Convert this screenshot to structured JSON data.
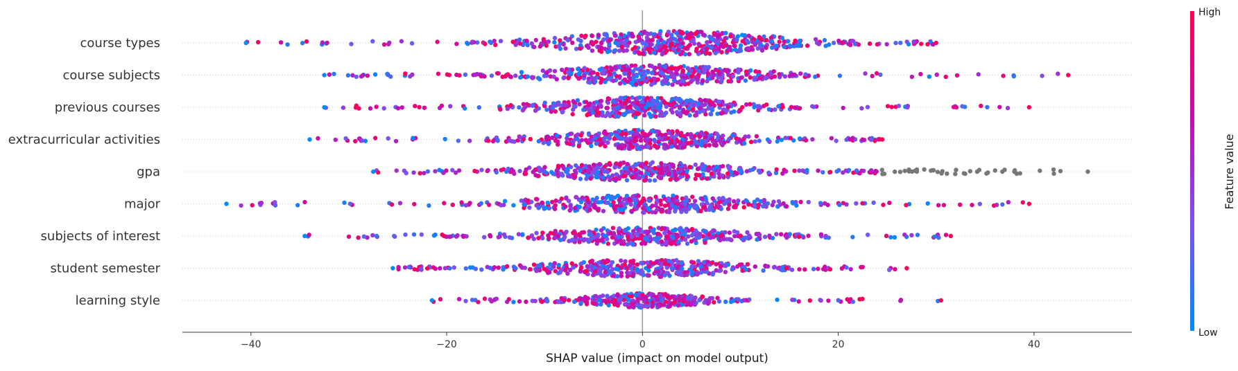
{
  "chart_data": {
    "type": "scatter",
    "subtype": "shap-beeswarm",
    "title": "",
    "xlabel": "SHAP value (impact on model output)",
    "ylabel": "",
    "xlim": [
      -47,
      50
    ],
    "xticks": [
      -40,
      -20,
      0,
      20,
      40
    ],
    "xtick_labels": [
      "−40",
      "−20",
      "0",
      "20",
      "40"
    ],
    "grid": false,
    "features": [
      {
        "name": "course types",
        "min": -40.5,
        "max": 30.0,
        "core_low": -18,
        "core_high": 23,
        "density_peak": 3,
        "width": 1.0,
        "na_from": null
      },
      {
        "name": "course subjects",
        "min": -32.5,
        "max": 43.5,
        "core_low": -20,
        "core_high": 17,
        "density_peak": 1,
        "width": 0.85,
        "na_from": null
      },
      {
        "name": "previous courses",
        "min": -32.5,
        "max": 39.5,
        "core_low": -17,
        "core_high": 18,
        "density_peak": 0,
        "width": 0.85,
        "na_from": null
      },
      {
        "name": "extracurricular activities",
        "min": -34.0,
        "max": 24.5,
        "core_low": -16,
        "core_high": 19,
        "density_peak": 0,
        "width": 0.8,
        "na_from": null
      },
      {
        "name": "gpa",
        "min": -27.5,
        "max": 45.5,
        "core_low": -17,
        "core_high": 20,
        "density_peak": 0,
        "width": 0.8,
        "na_from": 24
      },
      {
        "name": "major",
        "min": -42.5,
        "max": 39.5,
        "core_low": -20,
        "core_high": 21,
        "density_peak": 0,
        "width": 0.75,
        "na_from": null
      },
      {
        "name": "subjects of interest",
        "min": -34.5,
        "max": 31.5,
        "core_low": -20,
        "core_high": 17,
        "density_peak": 0,
        "width": 0.75,
        "na_from": null
      },
      {
        "name": "student semester",
        "min": -25.5,
        "max": 27.0,
        "core_low": -20,
        "core_high": 16,
        "density_peak": 0,
        "width": 0.75,
        "na_from": null
      },
      {
        "name": "learning style",
        "min": -21.5,
        "max": 30.5,
        "core_low": -11,
        "core_high": 12,
        "density_peak": 0,
        "width": 0.6,
        "na_from": null
      }
    ],
    "colorbar": {
      "title": "Feature value",
      "high_label": "High",
      "low_label": "Low",
      "colors": [
        "#008afb",
        "#7c52f0",
        "#c40db2",
        "#ff0052"
      ]
    },
    "colors": {
      "low": "#008afb",
      "high": "#ff0052",
      "missing": "#777777",
      "zero_line": "#999999",
      "row_guides": "#cccccc",
      "axis": "#333333"
    }
  }
}
